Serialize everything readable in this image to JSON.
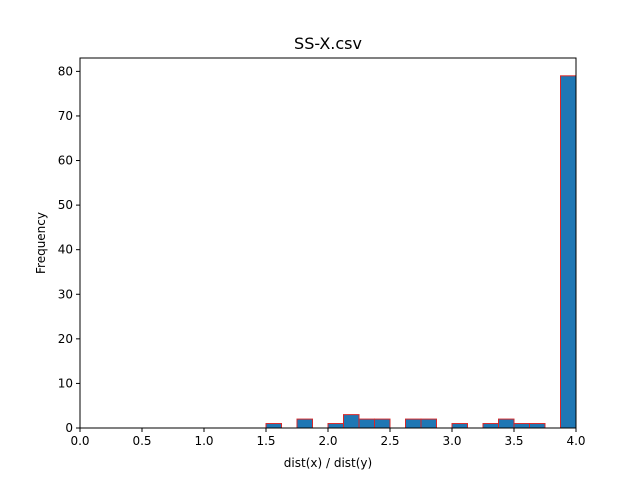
{
  "chart_data": {
    "type": "bar",
    "title": "SS-X.csv",
    "xlabel": "dist(x) / dist(y)",
    "ylabel": "Frequency",
    "xlim": [
      0.0,
      4.0
    ],
    "ylim": [
      0,
      83
    ],
    "xticks": [
      "0.0",
      "0.5",
      "1.0",
      "1.5",
      "2.0",
      "2.5",
      "3.0",
      "3.5",
      "4.0"
    ],
    "yticks": [
      "0",
      "10",
      "20",
      "30",
      "40",
      "50",
      "60",
      "70",
      "80"
    ],
    "bin_width": 0.125,
    "bins": [
      {
        "x": 1.5,
        "count": 1
      },
      {
        "x": 1.75,
        "count": 2
      },
      {
        "x": 2.0,
        "count": 1
      },
      {
        "x": 2.125,
        "count": 3
      },
      {
        "x": 2.25,
        "count": 2
      },
      {
        "x": 2.375,
        "count": 2
      },
      {
        "x": 2.625,
        "count": 2
      },
      {
        "x": 2.75,
        "count": 2
      },
      {
        "x": 3.0,
        "count": 1
      },
      {
        "x": 3.25,
        "count": 1
      },
      {
        "x": 3.375,
        "count": 2
      },
      {
        "x": 3.5,
        "count": 1
      },
      {
        "x": 3.625,
        "count": 1
      },
      {
        "x": 3.875,
        "count": 79
      }
    ],
    "bar_color": "#1f77b4",
    "bar_edge_color": "#d62728",
    "grid": false,
    "legend": "none"
  }
}
